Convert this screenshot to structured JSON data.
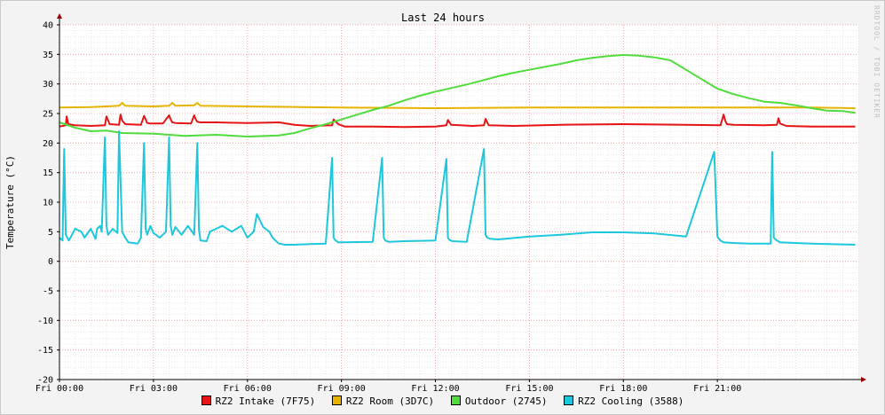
{
  "chart_data": {
    "type": "line",
    "title": "Last 24 hours",
    "ylabel": "Temperature (°C)",
    "watermark": "RRDTOOL / TOBI OETIKER",
    "ylim": [
      -20,
      40
    ],
    "yticks": [
      40,
      35,
      30,
      25,
      20,
      15,
      10,
      5,
      0,
      -5,
      -10,
      -15,
      -20
    ],
    "xlim_hours": [
      0,
      25.5
    ],
    "xticks": [
      {
        "h": 0,
        "label": "Fri 00:00"
      },
      {
        "h": 3,
        "label": "Fri 03:00"
      },
      {
        "h": 6,
        "label": "Fri 06:00"
      },
      {
        "h": 9,
        "label": "Fri 09:00"
      },
      {
        "h": 12,
        "label": "Fri 12:00"
      },
      {
        "h": 15,
        "label": "Fri 15:00"
      },
      {
        "h": 18,
        "label": "Fri 18:00"
      },
      {
        "h": 21,
        "label": "Fri 21:00"
      }
    ],
    "grid": true,
    "legend_position": "bottom",
    "series": [
      {
        "name": "RZ2 Intake (7F75)",
        "color": "#e61414",
        "x": [
          0,
          0.2,
          0.23,
          0.28,
          0.5,
          1.0,
          1.45,
          1.5,
          1.6,
          1.9,
          1.95,
          2.0,
          2.1,
          2.6,
          2.7,
          2.75,
          2.8,
          2.9,
          3.3,
          3.5,
          3.55,
          3.6,
          3.7,
          4.2,
          4.3,
          4.35,
          4.4,
          4.5,
          5,
          6,
          7,
          7.5,
          8,
          8.7,
          8.75,
          8.9,
          9.1,
          10,
          11,
          12,
          12.35,
          12.4,
          12.5,
          13.2,
          13.55,
          13.6,
          13.7,
          14.5,
          16,
          18,
          20,
          21.1,
          21.2,
          21.25,
          21.3,
          21.5,
          22.5,
          22.9,
          22.95,
          23.0,
          23.2,
          24,
          25.4
        ],
        "y": [
          22.8,
          23.0,
          24.5,
          23.2,
          23.0,
          22.9,
          23.0,
          24.5,
          23.2,
          23.1,
          24.8,
          23.8,
          23.2,
          23.1,
          24.6,
          24.0,
          23.4,
          23.3,
          23.3,
          24.7,
          24.0,
          23.5,
          23.4,
          23.3,
          24.7,
          24.0,
          23.6,
          23.5,
          23.5,
          23.4,
          23.5,
          23.1,
          22.9,
          23.0,
          24.0,
          23.2,
          22.8,
          22.8,
          22.7,
          22.8,
          23.0,
          23.9,
          23.1,
          22.9,
          23.0,
          24.1,
          23.0,
          22.9,
          23.1,
          23.2,
          23.1,
          23.0,
          24.8,
          23.8,
          23.2,
          23.1,
          23.0,
          23.1,
          24.2,
          23.3,
          22.9,
          22.8,
          22.8
        ]
      },
      {
        "name": "RZ2 Room (3D7C)",
        "color": "#e6b400",
        "x": [
          0,
          1,
          1.9,
          2,
          2.1,
          3,
          3.5,
          3.6,
          3.7,
          4.3,
          4.4,
          4.5,
          6,
          9,
          12,
          15,
          18,
          21,
          23,
          24,
          25.4
        ],
        "y": [
          26.0,
          26.1,
          26.3,
          26.8,
          26.3,
          26.2,
          26.3,
          26.8,
          26.3,
          26.4,
          26.8,
          26.3,
          26.2,
          26.0,
          25.9,
          26.0,
          26.0,
          26.0,
          26.0,
          26.0,
          25.9
        ]
      },
      {
        "name": "Outdoor (2745)",
        "color": "#50dc3c",
        "x": [
          0,
          0.5,
          1,
          1.5,
          2,
          3,
          4,
          5,
          6,
          7,
          7.5,
          8,
          8.5,
          9,
          9.5,
          10,
          10.5,
          11,
          11.5,
          12,
          12.5,
          13,
          13.5,
          14,
          14.5,
          15,
          15.5,
          16,
          16.5,
          17,
          17.5,
          18,
          18.5,
          19,
          19.5,
          20,
          20.5,
          21,
          21.5,
          22,
          22.5,
          23,
          23.5,
          24,
          24.5,
          25,
          25.4
        ],
        "y": [
          23.5,
          22.6,
          22.0,
          22.1,
          21.7,
          21.6,
          21.2,
          21.4,
          21.1,
          21.3,
          21.7,
          22.5,
          23.2,
          24.0,
          24.8,
          25.6,
          26.3,
          27.2,
          28.0,
          28.7,
          29.3,
          29.9,
          30.6,
          31.3,
          31.9,
          32.4,
          32.9,
          33.4,
          34.0,
          34.4,
          34.7,
          34.9,
          34.8,
          34.5,
          34.0,
          32.4,
          30.8,
          29.2,
          28.3,
          27.6,
          27.0,
          26.8,
          26.4,
          25.9,
          25.5,
          25.4,
          25.1
        ]
      },
      {
        "name": "RZ2 Cooling (3588)",
        "color": "#1ec8dc",
        "x": [
          0,
          0.1,
          0.15,
          0.2,
          0.3,
          0.5,
          0.7,
          0.8,
          1.0,
          1.15,
          1.2,
          1.3,
          1.35,
          1.45,
          1.5,
          1.55,
          1.7,
          1.85,
          1.9,
          2.0,
          2.1,
          2.2,
          2.5,
          2.6,
          2.7,
          2.75,
          2.8,
          2.9,
          3.0,
          3.2,
          3.4,
          3.5,
          3.55,
          3.6,
          3.7,
          3.9,
          4.1,
          4.3,
          4.4,
          4.45,
          4.5,
          4.7,
          4.8,
          5.0,
          5.2,
          5.5,
          5.8,
          6.0,
          6.2,
          6.3,
          6.5,
          6.7,
          6.8,
          7.0,
          7.2,
          7.5,
          8.0,
          8.5,
          8.7,
          8.75,
          8.8,
          8.9,
          9,
          10,
          10.3,
          10.35,
          10.4,
          10.5,
          11,
          12,
          12.35,
          12.4,
          12.45,
          12.55,
          13,
          13.55,
          13.6,
          13.65,
          13.75,
          14,
          15,
          16,
          17,
          18,
          19,
          20,
          20.9,
          21.0,
          21.05,
          21.1,
          21.2,
          21.5,
          22,
          22.5,
          22.7,
          22.75,
          22.8,
          22.9,
          23.0,
          24,
          25.4
        ],
        "y": [
          4.0,
          3.5,
          19.0,
          4.5,
          3.5,
          5.5,
          5.0,
          4.0,
          5.5,
          3.8,
          5.5,
          6.0,
          5.0,
          21.0,
          6.0,
          4.5,
          5.5,
          4.8,
          22.0,
          5.0,
          4.0,
          3.2,
          3.0,
          4.0,
          20.0,
          5.5,
          4.5,
          6.0,
          4.8,
          4.0,
          5.0,
          21.0,
          6.0,
          4.5,
          5.8,
          4.5,
          6.0,
          4.5,
          20.0,
          5.5,
          3.5,
          3.4,
          5.0,
          5.5,
          6.0,
          5.0,
          6.0,
          4.0,
          5.0,
          8.0,
          5.8,
          5.0,
          4.0,
          3.0,
          2.8,
          2.8,
          2.9,
          3.0,
          17.5,
          4.0,
          3.6,
          3.2,
          3.2,
          3.3,
          17.5,
          4.0,
          3.5,
          3.3,
          3.4,
          3.5,
          17.3,
          4.0,
          3.6,
          3.4,
          3.3,
          19.0,
          4.5,
          4.0,
          3.8,
          3.7,
          4.2,
          4.5,
          4.9,
          4.9,
          4.7,
          4.2,
          18.5,
          4.2,
          3.8,
          3.5,
          3.2,
          3.1,
          3.0,
          3.0,
          3.0,
          18.5,
          4.0,
          3.5,
          3.2,
          3.0,
          2.8
        ]
      }
    ]
  }
}
